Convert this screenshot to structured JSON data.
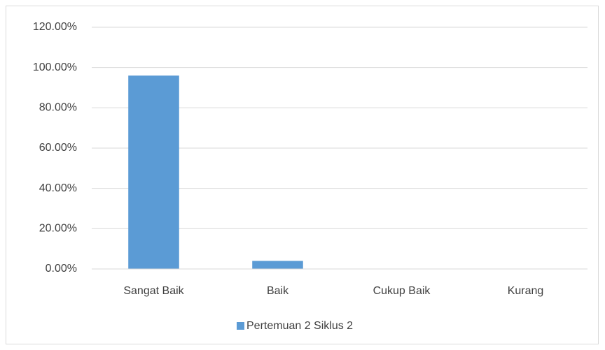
{
  "chart_data": {
    "type": "bar",
    "categories": [
      "Sangat Baik",
      "Baik",
      "Cukup Baik",
      "Kurang"
    ],
    "series": [
      {
        "name": "Pertemuan 2 Siklus 2",
        "color": "#5b9bd5",
        "values": [
          96,
          4,
          0,
          0
        ]
      }
    ],
    "ylim": [
      0,
      120
    ],
    "yticks": [
      {
        "value": 0,
        "label": "0.00%"
      },
      {
        "value": 20,
        "label": "20.00%"
      },
      {
        "value": 40,
        "label": "40.00%"
      },
      {
        "value": 60,
        "label": "60.00%"
      },
      {
        "value": 80,
        "label": "80.00%"
      },
      {
        "value": 100,
        "label": "100.00%"
      },
      {
        "value": 120,
        "label": "120.00%"
      }
    ],
    "grid": true,
    "legend": "bottom"
  }
}
